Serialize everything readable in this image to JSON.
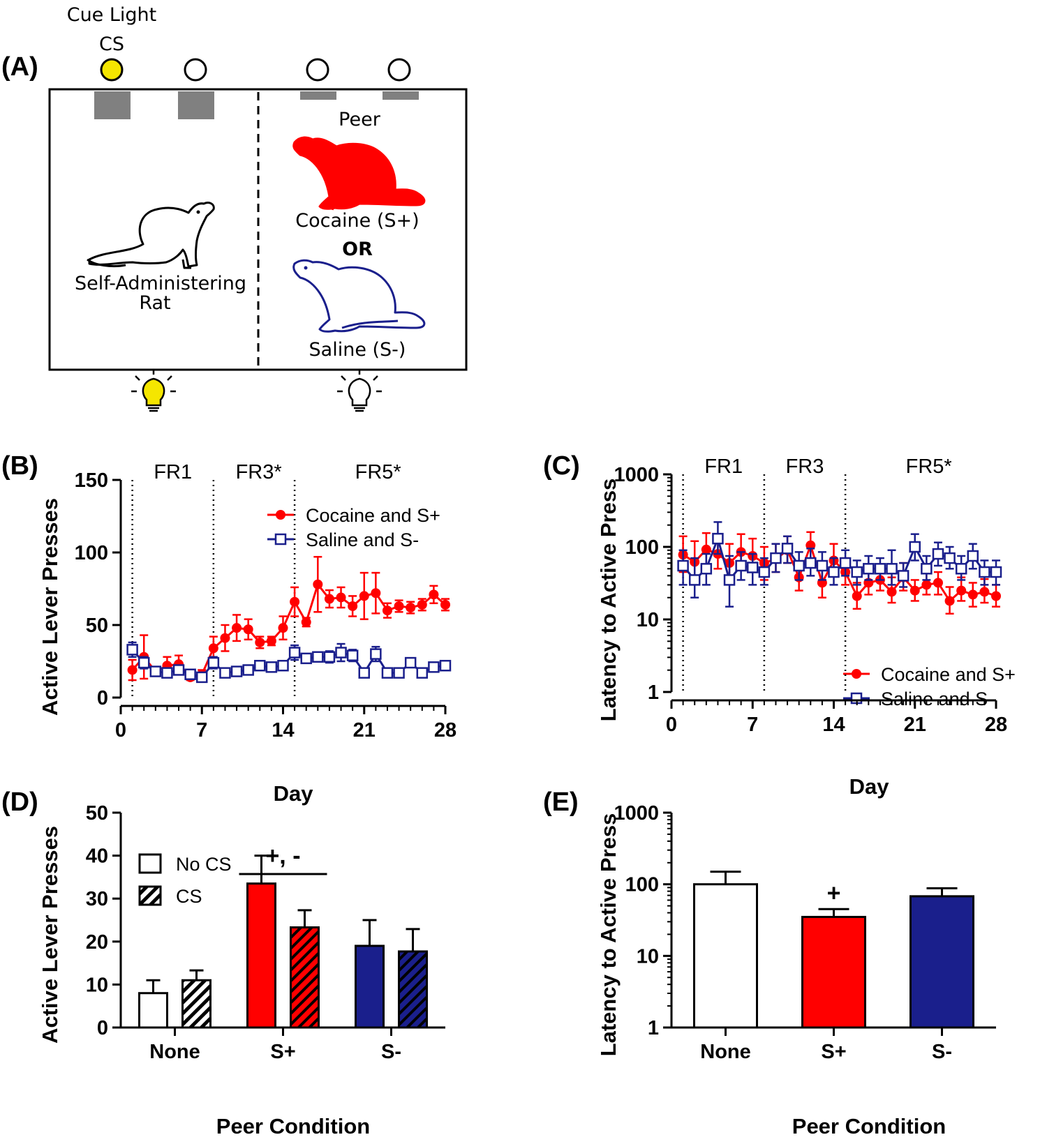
{
  "panel_a": {
    "label": "(A)",
    "cue_light_label": "Cue Light",
    "cs_label": "CS",
    "peer_label": "Peer",
    "cocaine_label": "Cocaine (S+)",
    "or_label": "OR",
    "saline_label": "Saline (S-)",
    "self_admin_label_1": "Self-Administering",
    "self_admin_label_2": "Rat",
    "colors": {
      "cue_on": "#f5e600",
      "cocaine": "#ff0000",
      "saline": "#1a1f8c"
    }
  },
  "chart_data": [
    {
      "id": "B",
      "panel_label": "(B)",
      "type": "line",
      "xlabel": "Day",
      "ylabel": "Active Lever Presses",
      "xlim": [
        0,
        28
      ],
      "ylim": [
        0,
        150
      ],
      "xticks": [
        0,
        7,
        14,
        21,
        28
      ],
      "yticks": [
        0,
        50,
        100,
        150
      ],
      "phase_lines": [
        1,
        8,
        15
      ],
      "phases": [
        {
          "label": "FR1",
          "x": 4.5
        },
        {
          "label": "FR3*",
          "x": 11.9
        },
        {
          "label": "FR5*",
          "x": 22.2
        }
      ],
      "series": [
        {
          "name": "Cocaine and S+",
          "color": "#ff0000",
          "marker": "filled-circle",
          "x": [
            1,
            2,
            3,
            4,
            5,
            6,
            7,
            8,
            9,
            10,
            11,
            12,
            13,
            14,
            15,
            16,
            17,
            18,
            19,
            20,
            21,
            22,
            23,
            24,
            25,
            26,
            27,
            28
          ],
          "values": [
            19,
            28,
            18,
            22,
            23,
            14,
            16,
            34,
            41,
            48,
            47,
            38,
            39,
            48,
            66,
            52,
            78,
            68,
            69,
            63,
            70,
            72,
            60,
            63,
            62,
            64,
            71,
            64
          ],
          "err": [
            7,
            15,
            3,
            6,
            6,
            2,
            3,
            8,
            9,
            9,
            7,
            4,
            3,
            8,
            10,
            3,
            19,
            6,
            7,
            7,
            16,
            14,
            5,
            4,
            4,
            4,
            6,
            4
          ]
        },
        {
          "name": "Saline and S-",
          "color": "#1a1f8c",
          "marker": "open-square",
          "x": [
            1,
            2,
            3,
            4,
            5,
            6,
            7,
            8,
            9,
            10,
            11,
            12,
            13,
            14,
            15,
            16,
            17,
            18,
            19,
            20,
            21,
            22,
            23,
            24,
            25,
            26,
            27,
            28
          ],
          "values": [
            33,
            24,
            18,
            17,
            19,
            16,
            14,
            24,
            17,
            18,
            19,
            22,
            21,
            22,
            31,
            27,
            28,
            28,
            31,
            29,
            17,
            30,
            17,
            17,
            24,
            17,
            21,
            22
          ],
          "err": [
            5,
            4,
            3,
            3,
            3,
            2,
            2,
            4,
            2,
            2,
            2,
            3,
            2,
            2,
            5,
            3,
            3,
            4,
            6,
            4,
            3,
            5,
            2,
            2,
            2,
            2,
            3,
            2
          ]
        }
      ],
      "legend": "top-right"
    },
    {
      "id": "C",
      "panel_label": "(C)",
      "type": "line",
      "yscale": "log",
      "xlabel": "Day",
      "ylabel": "Latency to Active Press",
      "xlim": [
        0,
        28
      ],
      "ylim": [
        1,
        1000
      ],
      "xticks": [
        0,
        7,
        14,
        21,
        28
      ],
      "yticks": [
        1,
        10,
        100,
        1000
      ],
      "phase_lines": [
        1,
        8,
        15
      ],
      "phases": [
        {
          "label": "FR1",
          "x": 4.5
        },
        {
          "label": "FR3",
          "x": 11.5
        },
        {
          "label": "FR5*",
          "x": 22.2
        }
      ],
      "series": [
        {
          "name": "Cocaine and S+",
          "color": "#ff0000",
          "marker": "filled-circle",
          "x": [
            1,
            2,
            3,
            4,
            5,
            6,
            7,
            8,
            9,
            10,
            11,
            12,
            13,
            14,
            15,
            16,
            17,
            18,
            19,
            20,
            21,
            22,
            23,
            24,
            25,
            26,
            27,
            28
          ],
          "values": [
            78,
            62,
            92,
            80,
            60,
            85,
            75,
            60,
            68,
            90,
            38,
            105,
            32,
            65,
            45,
            21,
            32,
            35,
            24,
            38,
            25,
            30,
            32,
            18,
            25,
            22,
            24,
            21
          ],
          "err_hi": [
            140,
            120,
            155,
            130,
            110,
            150,
            130,
            100,
            110,
            140,
            60,
            160,
            60,
            110,
            70,
            32,
            48,
            50,
            38,
            60,
            35,
            45,
            45,
            28,
            38,
            32,
            36,
            30
          ],
          "err_lo": [
            45,
            35,
            55,
            50,
            35,
            50,
            45,
            35,
            45,
            60,
            25,
            70,
            20,
            40,
            30,
            14,
            22,
            25,
            17,
            25,
            18,
            22,
            22,
            12,
            18,
            15,
            17,
            15
          ]
        },
        {
          "name": "Saline and S-",
          "color": "#1a1f8c",
          "marker": "open-square",
          "x": [
            1,
            2,
            3,
            4,
            5,
            6,
            7,
            8,
            9,
            10,
            11,
            12,
            13,
            14,
            15,
            16,
            17,
            18,
            19,
            20,
            21,
            22,
            23,
            24,
            25,
            26,
            27,
            28
          ],
          "values": [
            55,
            35,
            50,
            130,
            35,
            55,
            52,
            45,
            70,
            95,
            55,
            60,
            55,
            45,
            60,
            45,
            50,
            50,
            50,
            40,
            100,
            50,
            80,
            70,
            50,
            75,
            45,
            45
          ],
          "err_hi": [
            90,
            70,
            80,
            220,
            75,
            85,
            80,
            70,
            110,
            140,
            85,
            95,
            85,
            70,
            90,
            65,
            75,
            70,
            90,
            60,
            150,
            75,
            115,
            100,
            75,
            110,
            65,
            65
          ],
          "err_lo": [
            30,
            20,
            30,
            80,
            15,
            35,
            30,
            30,
            45,
            60,
            35,
            40,
            35,
            30,
            40,
            30,
            35,
            35,
            30,
            28,
            65,
            35,
            55,
            50,
            35,
            50,
            30,
            30
          ]
        }
      ],
      "legend": "bottom-right"
    },
    {
      "id": "D",
      "panel_label": "(D)",
      "type": "bar",
      "xlabel": "Peer Condition",
      "ylabel": "Active Lever Presses",
      "ylim": [
        0,
        50
      ],
      "yticks": [
        0,
        10,
        20,
        30,
        40,
        50
      ],
      "categories": [
        "None",
        "S+",
        "S-"
      ],
      "category_colors": [
        "#ffffff",
        "#ff0000",
        "#1a1f8c"
      ],
      "series": [
        {
          "name": "No CS",
          "pattern": "solid",
          "values": [
            8,
            33.5,
            19
          ],
          "err": [
            3,
            6.5,
            6
          ]
        },
        {
          "name": "CS",
          "pattern": "hatched",
          "values": [
            11,
            23.3,
            17.7
          ],
          "err": [
            2.3,
            4,
            5.2
          ]
        }
      ],
      "annotation": {
        "text": "+, -",
        "over": "S+"
      },
      "legend": "top-left"
    },
    {
      "id": "E",
      "panel_label": "(E)",
      "type": "bar",
      "yscale": "log",
      "xlabel": "Peer Condition",
      "ylabel": "Latency to Active Press",
      "ylim": [
        1,
        1000
      ],
      "yticks": [
        1,
        10,
        100,
        1000
      ],
      "categories": [
        "None",
        "S+",
        "S-"
      ],
      "category_colors": [
        "#ffffff",
        "#ff0000",
        "#1a1f8c"
      ],
      "values": [
        100,
        35,
        68
      ],
      "err_hi": [
        150,
        45,
        88
      ],
      "annotation": {
        "text": "+",
        "over": "S+"
      }
    }
  ]
}
